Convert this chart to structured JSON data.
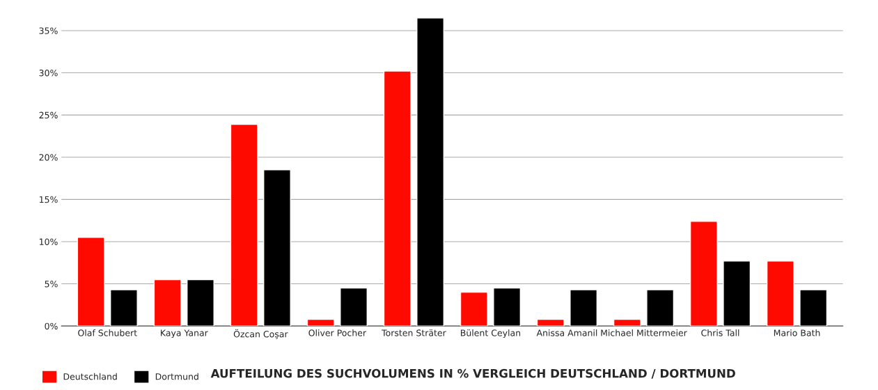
{
  "chart_data": {
    "type": "bar",
    "title": "AUFTEILUNG DES SUCHVOLUMENS IN % VERGLEICH DEUTSCHLAND / DORTMUND",
    "categories": [
      "Olaf Schubert",
      "Kaya Yanar",
      "Özcan Coşar",
      "Oliver Pocher",
      "Torsten Sträter",
      "Bülent Ceylan",
      "Anissa Amanil",
      "Michael Mittermeier",
      "Chris Tall",
      "Mario Bath"
    ],
    "series": [
      {
        "name": "Deutschland",
        "color": "#ff0a00",
        "values": [
          10.5,
          5.5,
          23.9,
          0.8,
          30.2,
          4.0,
          0.8,
          0.8,
          12.4,
          7.7
        ]
      },
      {
        "name": "Dortmund",
        "color": "#000000",
        "values": [
          4.3,
          5.5,
          18.5,
          4.5,
          36.5,
          4.5,
          4.3,
          4.3,
          7.7,
          4.3
        ]
      }
    ],
    "ylim": [
      0,
      36.5
    ],
    "yticks": [
      {
        "value": 0,
        "label": "0%"
      },
      {
        "value": 5,
        "label": "5%"
      },
      {
        "value": 10,
        "label": "10%"
      },
      {
        "value": 15,
        "label": "15%"
      },
      {
        "value": 20,
        "label": "20%"
      },
      {
        "value": 25,
        "label": "25%"
      },
      {
        "value": 30,
        "label": "30%"
      },
      {
        "value": 35,
        "label": "35%"
      }
    ],
    "grid": "y",
    "legend": "bottom left"
  }
}
